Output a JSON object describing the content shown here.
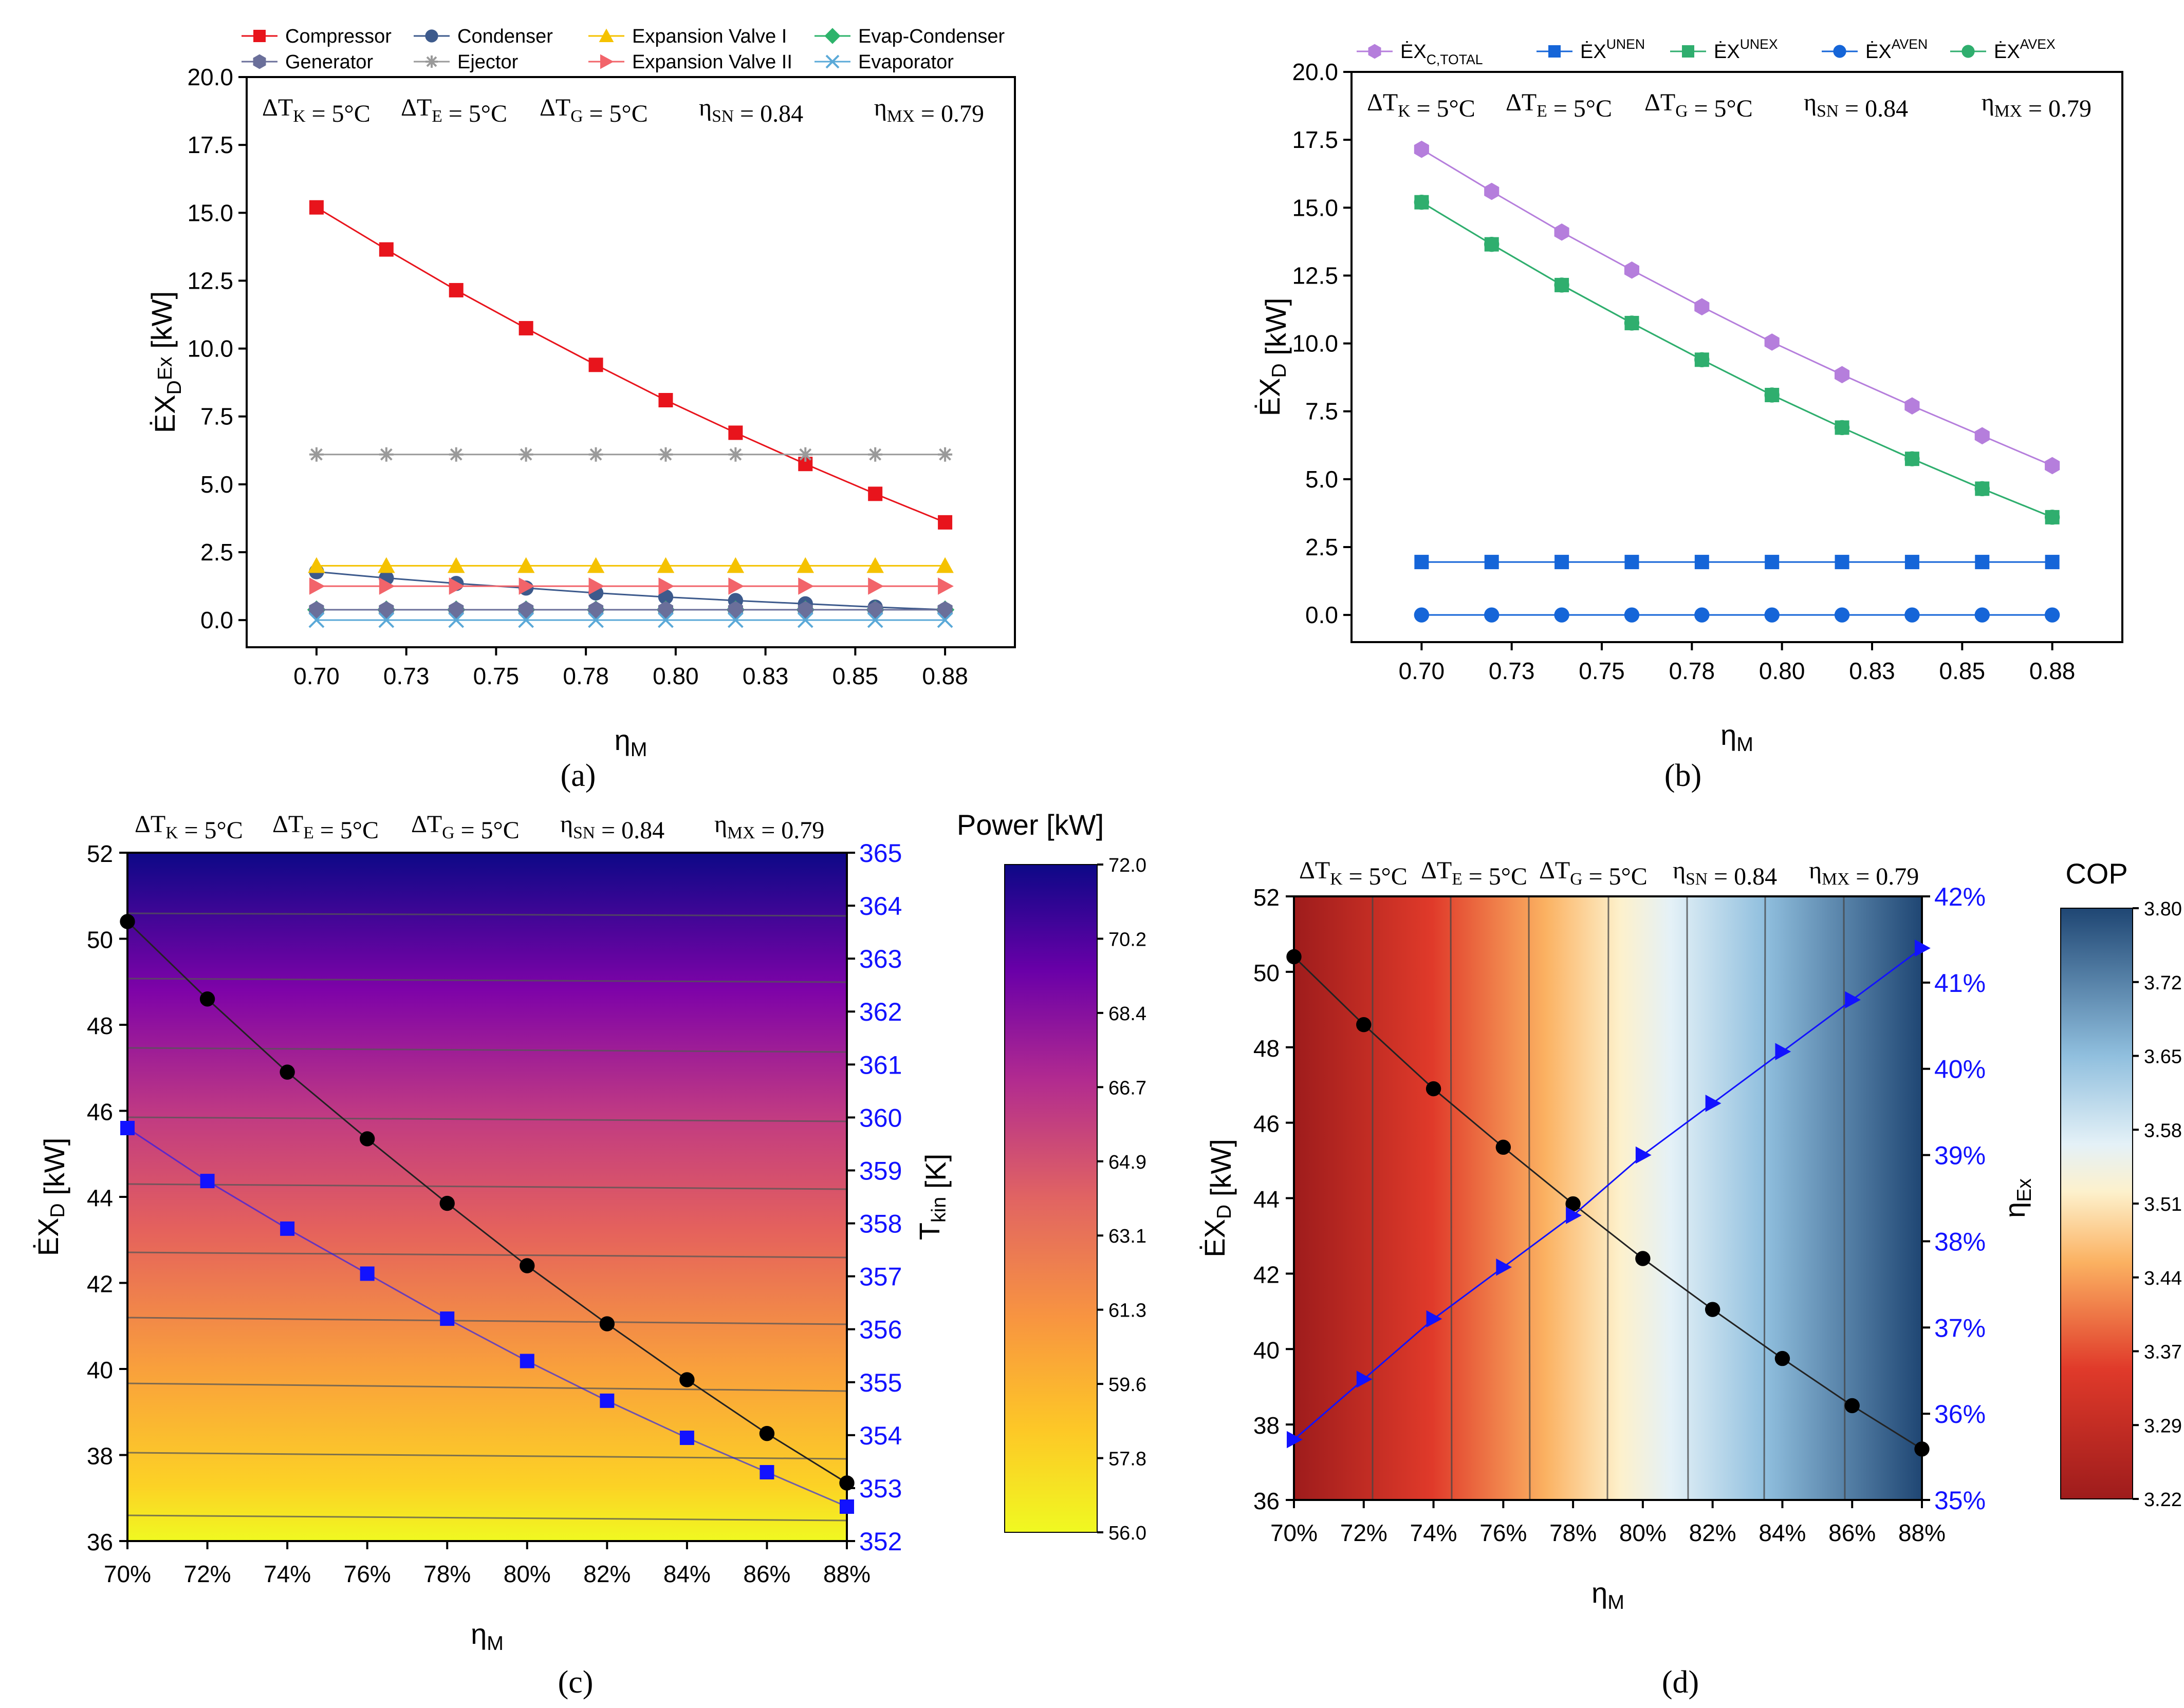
{
  "chart_data": [
    {
      "id": "a",
      "caption": "(a)",
      "type": "line",
      "xlabel": "η_M",
      "ylabel": "ĖX_D^Ex [kW]",
      "x": [
        0.7,
        0.72,
        0.74,
        0.76,
        0.78,
        0.8,
        0.82,
        0.84,
        0.86,
        0.88
      ],
      "xtick_labels": [
        "0.70",
        "0.73",
        "0.75",
        "0.78",
        "0.80",
        "0.83",
        "0.85",
        "0.88"
      ],
      "xlim": [
        0.68,
        0.9
      ],
      "ylim": [
        -1.0,
        20.0
      ],
      "yticks": [
        "0.0",
        "2.5",
        "5.0",
        "7.5",
        "10.0",
        "12.5",
        "15.0",
        "17.5",
        "20.0"
      ],
      "annotations": [
        "ΔT_K = 5°C",
        "ΔT_E = 5°C",
        "ΔT_G = 5°C",
        "η_SN = 0.84",
        "η_MX = 0.79"
      ],
      "series": [
        {
          "name": "Compressor",
          "color": "#e8141c",
          "marker": "square",
          "values": [
            15.2,
            13.65,
            12.15,
            10.75,
            9.4,
            8.1,
            6.9,
            5.75,
            4.65,
            3.6
          ]
        },
        {
          "name": "Condenser",
          "color": "#3d5a8c",
          "marker": "circle",
          "values": [
            1.78,
            1.55,
            1.35,
            1.18,
            1.0,
            0.85,
            0.72,
            0.6,
            0.48,
            0.38
          ]
        },
        {
          "name": "Expansion Valve I",
          "color": "#f5c200",
          "marker": "triangle-up",
          "values": [
            2.0,
            2.0,
            2.0,
            2.0,
            2.0,
            2.0,
            2.0,
            2.0,
            2.0,
            2.0
          ]
        },
        {
          "name": "Evap-Condenser",
          "color": "#2db36b",
          "marker": "diamond",
          "values": [
            0.38,
            0.38,
            0.38,
            0.38,
            0.38,
            0.38,
            0.38,
            0.38,
            0.38,
            0.38
          ]
        },
        {
          "name": "Generator",
          "color": "#6a6f9a",
          "marker": "hexagon",
          "values": [
            0.38,
            0.38,
            0.38,
            0.38,
            0.38,
            0.38,
            0.38,
            0.38,
            0.38,
            0.38
          ]
        },
        {
          "name": "Ejector",
          "color": "#9a9a9a",
          "marker": "asterisk",
          "values": [
            6.1,
            6.1,
            6.1,
            6.1,
            6.1,
            6.1,
            6.1,
            6.1,
            6.1,
            6.1
          ]
        },
        {
          "name": "Expansion Valve II",
          "color": "#f2646a",
          "marker": "triangle-right",
          "values": [
            1.25,
            1.25,
            1.25,
            1.25,
            1.25,
            1.25,
            1.25,
            1.25,
            1.25,
            1.25
          ]
        },
        {
          "name": "Evaporator",
          "color": "#5aa9d8",
          "marker": "cross",
          "values": [
            0.0,
            0.0,
            0.0,
            0.0,
            0.0,
            0.0,
            0.0,
            0.0,
            0.0,
            0.0
          ]
        }
      ]
    },
    {
      "id": "b",
      "caption": "(b)",
      "type": "line",
      "xlabel": "η_M",
      "ylabel": "ĖX_D [kW]",
      "x": [
        0.7,
        0.72,
        0.74,
        0.76,
        0.78,
        0.8,
        0.82,
        0.84,
        0.86,
        0.88
      ],
      "xtick_labels": [
        "0.70",
        "0.73",
        "0.75",
        "0.78",
        "0.80",
        "0.83",
        "0.85",
        "0.88"
      ],
      "xlim": [
        0.68,
        0.9
      ],
      "ylim": [
        -1.0,
        20.0
      ],
      "yticks": [
        "0.0",
        "2.5",
        "5.0",
        "7.5",
        "10.0",
        "12.5",
        "15.0",
        "17.5",
        "20.0"
      ],
      "annotations": [
        "ΔT_K = 5°C",
        "ΔT_E = 5°C",
        "ΔT_G = 5°C",
        "η_SN = 0.84",
        "η_MX = 0.79"
      ],
      "series": [
        {
          "name": "ĖX_C,TOTAL",
          "color": "#b57edc",
          "marker": "hexagon",
          "values": [
            17.15,
            15.6,
            14.1,
            12.7,
            11.35,
            10.05,
            8.85,
            7.7,
            6.6,
            5.5
          ]
        },
        {
          "name": "ĖX^UNEN",
          "color": "#1565d8",
          "marker": "square",
          "values": [
            1.95,
            1.95,
            1.95,
            1.95,
            1.95,
            1.95,
            1.95,
            1.95,
            1.95,
            1.95
          ]
        },
        {
          "name": "ĖX^UNEX",
          "color": "#2fae6e",
          "marker": "square",
          "values": [
            15.2,
            13.65,
            12.15,
            10.75,
            9.4,
            8.1,
            6.9,
            5.75,
            4.65,
            3.6
          ]
        },
        {
          "name": "ĖX^AVEN",
          "color": "#1565d8",
          "marker": "circle",
          "values": [
            0.0,
            0.0,
            0.0,
            0.0,
            0.0,
            0.0,
            0.0,
            0.0,
            0.0,
            0.0
          ]
        },
        {
          "name": "ĖX^AVEX",
          "color": "#2fae6e",
          "marker": "circle",
          "values": [
            15.2,
            13.65,
            12.15,
            10.75,
            9.4,
            8.1,
            6.9,
            5.75,
            4.65,
            3.6
          ]
        }
      ]
    },
    {
      "id": "c",
      "caption": "(c)",
      "type": "heatmap",
      "xlabel": "η_M",
      "ylabel": "ĖX_D [kW]",
      "y2label": "T_kin [K]",
      "colorbar_title": "Power [kW]",
      "colorbar_ticks": [
        "72.0",
        "70.2",
        "68.4",
        "66.7",
        "64.9",
        "63.1",
        "61.3",
        "59.6",
        "57.8",
        "56.0"
      ],
      "colorbar_range": [
        56.0,
        72.0
      ],
      "x": [
        70,
        72,
        74,
        76,
        78,
        80,
        82,
        84,
        86,
        88
      ],
      "xtick_labels": [
        "70%",
        "72%",
        "74%",
        "76%",
        "78%",
        "80%",
        "82%",
        "84%",
        "86%",
        "88%"
      ],
      "ylim": [
        36,
        52
      ],
      "yticks": [
        "36",
        "38",
        "40",
        "42",
        "44",
        "46",
        "48",
        "50",
        "52"
      ],
      "y2lim": [
        352,
        365
      ],
      "y2ticks": [
        "352",
        "353",
        "354",
        "355",
        "356",
        "357",
        "358",
        "359",
        "360",
        "361",
        "362",
        "363",
        "364",
        "365"
      ],
      "annotations": [
        "ΔT_K = 5°C",
        "ΔT_E = 5°C",
        "ΔT_G = 5°C",
        "η_SN = 0.84",
        "η_MX = 0.79"
      ],
      "series": [
        {
          "name": "ĖX_D",
          "axis": "left",
          "color": "#000000",
          "marker": "circle",
          "values": [
            50.4,
            48.6,
            46.9,
            45.35,
            43.85,
            42.4,
            41.05,
            39.75,
            38.5,
            37.35
          ]
        },
        {
          "name": "T_kin",
          "axis": "right",
          "color": "#1212ff",
          "marker": "square",
          "values": [
            359.8,
            358.8,
            357.9,
            357.05,
            356.2,
            355.4,
            354.65,
            353.95,
            353.3,
            352.65
          ]
        }
      ]
    },
    {
      "id": "d",
      "caption": "(d)",
      "type": "heatmap",
      "xlabel": "η_M",
      "ylabel": "ĖX_D [kW]",
      "y2label": "η_Ex",
      "colorbar_title": "COP",
      "colorbar_ticks": [
        "3.80",
        "3.72",
        "3.65",
        "3.58",
        "3.51",
        "3.44",
        "3.37",
        "3.29",
        "3.22"
      ],
      "colorbar_range": [
        3.22,
        3.8
      ],
      "x": [
        70,
        72,
        74,
        76,
        78,
        80,
        82,
        84,
        86,
        88
      ],
      "xtick_labels": [
        "70%",
        "72%",
        "74%",
        "76%",
        "78%",
        "80%",
        "82%",
        "84%",
        "86%",
        "88%"
      ],
      "ylim": [
        36,
        52
      ],
      "yticks": [
        "36",
        "38",
        "40",
        "42",
        "44",
        "46",
        "48",
        "50",
        "52"
      ],
      "y2lim": [
        35,
        42
      ],
      "y2ticks": [
        "35%",
        "36%",
        "37%",
        "38%",
        "39%",
        "40%",
        "41%",
        "42%"
      ],
      "annotations": [
        "ΔT_K = 5°C",
        "ΔT_E = 5°C",
        "ΔT_G = 5°C",
        "η_SN = 0.84",
        "η_MX = 0.79"
      ],
      "series": [
        {
          "name": "ĖX_D",
          "axis": "left",
          "color": "#000000",
          "marker": "circle",
          "values": [
            50.4,
            48.6,
            46.9,
            45.35,
            43.85,
            42.4,
            41.05,
            39.75,
            38.5,
            37.35
          ]
        },
        {
          "name": "η_Ex",
          "axis": "right",
          "color": "#1212ff",
          "marker": "triangle-right",
          "values": [
            35.7,
            36.4,
            37.1,
            37.7,
            38.3,
            39.0,
            39.6,
            40.2,
            40.8,
            41.4
          ]
        }
      ]
    }
  ]
}
